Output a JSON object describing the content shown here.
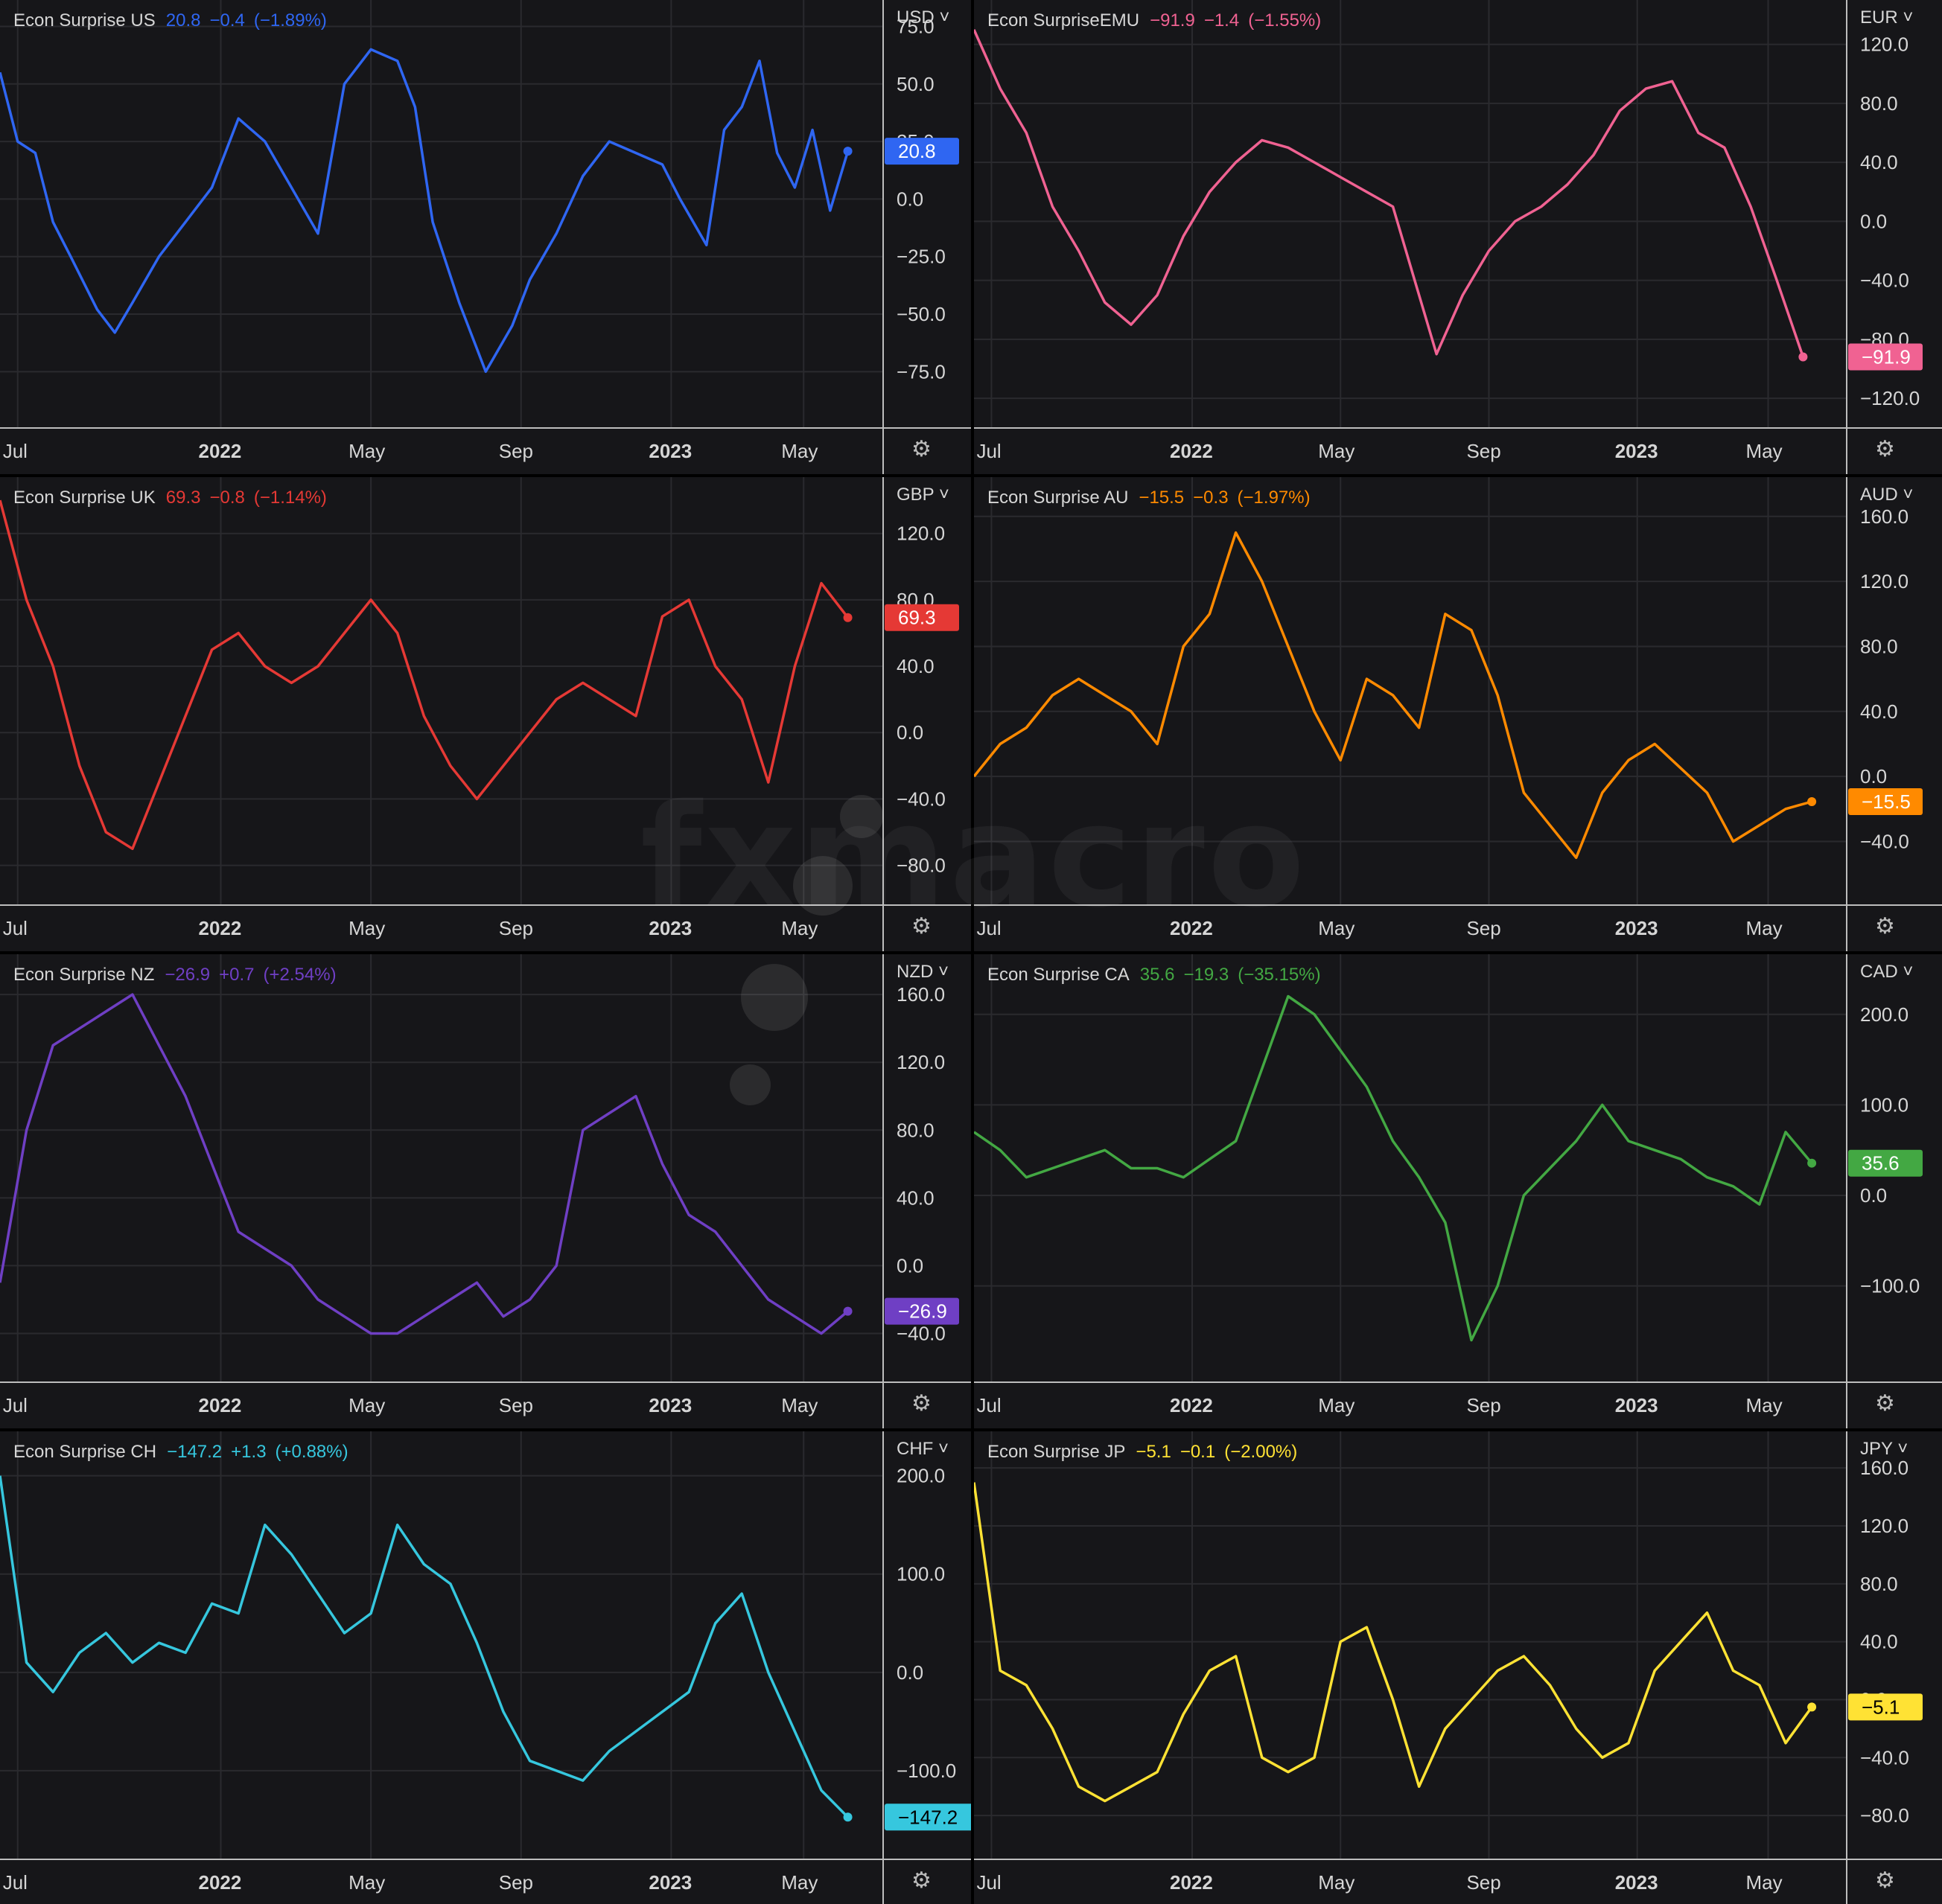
{
  "watermark": "fxmacro",
  "chart_data": [
    {
      "type": "line",
      "series_name": "Econ Surprise US",
      "last": "20.8",
      "change": "−0.4",
      "change_pct": "(−1.89%)",
      "currency": "USD",
      "color": "#2f66f2",
      "y_ticks": [
        75,
        50,
        25,
        0,
        -25,
        -50,
        -75
      ],
      "ylim": [
        -93,
        80
      ],
      "x_ticks": [
        "Jul",
        "2022",
        "May",
        "Sep",
        "2023",
        "May"
      ],
      "x": [
        0,
        0.02,
        0.04,
        0.06,
        0.08,
        0.11,
        0.13,
        0.15,
        0.18,
        0.21,
        0.24,
        0.27,
        0.3,
        0.33,
        0.36,
        0.39,
        0.42,
        0.45,
        0.47,
        0.49,
        0.52,
        0.55,
        0.58,
        0.6,
        0.63,
        0.66,
        0.69,
        0.72,
        0.75,
        0.77,
        0.8,
        0.82,
        0.84,
        0.86,
        0.88,
        0.9,
        0.92,
        0.94,
        0.96
      ],
      "y": [
        55,
        25,
        20,
        -10,
        -25,
        -48,
        -58,
        -45,
        -25,
        -10,
        5,
        35,
        25,
        5,
        -15,
        50,
        65,
        60,
        40,
        -10,
        -45,
        -75,
        -55,
        -35,
        -15,
        10,
        25,
        20,
        15,
        0,
        -20,
        30,
        40,
        60,
        20,
        5,
        30,
        -5,
        20.8
      ]
    },
    {
      "type": "line",
      "series_name": "Econ SurpriseEMU",
      "last": "−91.9",
      "change": "−1.4",
      "change_pct": "(−1.55%)",
      "currency": "EUR",
      "color": "#f06292",
      "y_ticks": [
        120,
        80,
        40,
        0,
        -40,
        -80,
        -120
      ],
      "ylim": [
        -130,
        140
      ],
      "x_ticks": [
        "Jul",
        "2022",
        "May",
        "Sep",
        "2023",
        "May"
      ],
      "x": [
        0,
        0.03,
        0.06,
        0.09,
        0.12,
        0.15,
        0.18,
        0.21,
        0.24,
        0.27,
        0.3,
        0.33,
        0.36,
        0.39,
        0.42,
        0.45,
        0.48,
        0.5,
        0.53,
        0.56,
        0.59,
        0.62,
        0.65,
        0.68,
        0.71,
        0.74,
        0.77,
        0.8,
        0.83,
        0.86,
        0.89,
        0.92,
        0.95
      ],
      "y": [
        130,
        90,
        60,
        10,
        -20,
        -55,
        -70,
        -50,
        -10,
        20,
        40,
        55,
        50,
        40,
        30,
        20,
        10,
        -30,
        -90,
        -50,
        -20,
        0,
        10,
        25,
        45,
        75,
        90,
        95,
        60,
        50,
        10,
        -40,
        -91.9
      ]
    },
    {
      "type": "line",
      "series_name": "Econ Surprise UK",
      "last": "69.3",
      "change": "−0.8",
      "change_pct": "(−1.14%)",
      "currency": "GBP",
      "color": "#e53935",
      "y_ticks": [
        120,
        80,
        40,
        0,
        -40,
        -80
      ],
      "ylim": [
        -95,
        145
      ],
      "x_ticks": [
        "Jul",
        "2022",
        "May",
        "Sep",
        "2023",
        "May"
      ],
      "x": [
        0,
        0.03,
        0.06,
        0.09,
        0.12,
        0.15,
        0.18,
        0.21,
        0.24,
        0.27,
        0.3,
        0.33,
        0.36,
        0.39,
        0.42,
        0.45,
        0.48,
        0.51,
        0.54,
        0.57,
        0.6,
        0.63,
        0.66,
        0.69,
        0.72,
        0.75,
        0.78,
        0.81,
        0.84,
        0.87,
        0.9,
        0.93,
        0.96
      ],
      "y": [
        140,
        80,
        40,
        -20,
        -60,
        -70,
        -30,
        10,
        50,
        60,
        40,
        30,
        40,
        60,
        80,
        60,
        10,
        -20,
        -40,
        -20,
        0,
        20,
        30,
        20,
        10,
        70,
        80,
        40,
        20,
        -30,
        40,
        90,
        69.3
      ]
    },
    {
      "type": "line",
      "series_name": "Econ Surprise AU",
      "last": "−15.5",
      "change": "−0.3",
      "change_pct": "(−1.97%)",
      "currency": "AUD",
      "color": "#ff8a00",
      "y_ticks": [
        160,
        120,
        80,
        40,
        0,
        -40
      ],
      "ylim": [
        -70,
        175
      ],
      "x_ticks": [
        "Jul",
        "2022",
        "May",
        "Sep",
        "2023",
        "May"
      ],
      "x": [
        0,
        0.03,
        0.06,
        0.09,
        0.12,
        0.15,
        0.18,
        0.21,
        0.24,
        0.27,
        0.3,
        0.33,
        0.36,
        0.39,
        0.42,
        0.45,
        0.48,
        0.51,
        0.54,
        0.57,
        0.6,
        0.63,
        0.66,
        0.69,
        0.72,
        0.75,
        0.78,
        0.81,
        0.84,
        0.87,
        0.9,
        0.93,
        0.96
      ],
      "y": [
        0,
        20,
        30,
        50,
        60,
        50,
        40,
        20,
        80,
        100,
        150,
        120,
        80,
        40,
        10,
        60,
        50,
        30,
        100,
        90,
        50,
        -10,
        -30,
        -50,
        -10,
        10,
        20,
        5,
        -10,
        -40,
        -30,
        -20,
        -15.5
      ]
    },
    {
      "type": "line",
      "series_name": "Econ Surprise NZ",
      "last": "−26.9",
      "change": "+0.7",
      "change_pct": "(+2.54%)",
      "currency": "NZD",
      "color": "#6f3fc4",
      "y_ticks": [
        160,
        120,
        80,
        40,
        0,
        -40
      ],
      "ylim": [
        -60,
        175
      ],
      "x_ticks": [
        "Jul",
        "2022",
        "May",
        "Sep",
        "2023",
        "May"
      ],
      "x": [
        0,
        0.03,
        0.06,
        0.09,
        0.12,
        0.15,
        0.18,
        0.21,
        0.24,
        0.27,
        0.3,
        0.33,
        0.36,
        0.39,
        0.42,
        0.45,
        0.48,
        0.51,
        0.54,
        0.57,
        0.6,
        0.63,
        0.66,
        0.69,
        0.72,
        0.75,
        0.78,
        0.81,
        0.84,
        0.87,
        0.9,
        0.93,
        0.96
      ],
      "y": [
        -10,
        80,
        130,
        140,
        150,
        160,
        130,
        100,
        60,
        20,
        10,
        0,
        -20,
        -30,
        -40,
        -40,
        -30,
        -20,
        -10,
        -30,
        -20,
        0,
        80,
        90,
        100,
        60,
        30,
        20,
        0,
        -20,
        -30,
        -40,
        -26.9
      ]
    },
    {
      "type": "line",
      "series_name": "Econ Surprise CA",
      "last": "35.6",
      "change": "−19.3",
      "change_pct": "(−35.15%)",
      "currency": "CAD",
      "color": "#43a843",
      "y_ticks": [
        200,
        100,
        0,
        -100
      ],
      "ylim": [
        -190,
        250
      ],
      "x_ticks": [
        "Jul",
        "2022",
        "May",
        "Sep",
        "2023",
        "May"
      ],
      "x": [
        0,
        0.03,
        0.06,
        0.09,
        0.12,
        0.15,
        0.18,
        0.21,
        0.24,
        0.27,
        0.3,
        0.33,
        0.36,
        0.39,
        0.42,
        0.45,
        0.48,
        0.51,
        0.54,
        0.57,
        0.6,
        0.63,
        0.66,
        0.69,
        0.72,
        0.75,
        0.78,
        0.81,
        0.84,
        0.87,
        0.9,
        0.93,
        0.96
      ],
      "y": [
        70,
        50,
        20,
        30,
        40,
        50,
        30,
        30,
        20,
        40,
        60,
        140,
        220,
        200,
        160,
        120,
        60,
        20,
        -30,
        -160,
        -100,
        0,
        30,
        60,
        100,
        60,
        50,
        40,
        20,
        10,
        -10,
        70,
        35.6
      ]
    },
    {
      "type": "line",
      "series_name": "Econ Surprise CH",
      "last": "−147.2",
      "change": "+1.3",
      "change_pct": "(+0.88%)",
      "currency": "CHF",
      "color": "#36c7de",
      "y_ticks": [
        200,
        100,
        0,
        -100
      ],
      "ylim": [
        -175,
        230
      ],
      "x_ticks": [
        "Jul",
        "2022",
        "May",
        "Sep",
        "2023",
        "May"
      ],
      "x": [
        0,
        0.03,
        0.06,
        0.09,
        0.12,
        0.15,
        0.18,
        0.21,
        0.24,
        0.27,
        0.3,
        0.33,
        0.36,
        0.39,
        0.42,
        0.45,
        0.48,
        0.51,
        0.54,
        0.57,
        0.6,
        0.63,
        0.66,
        0.69,
        0.72,
        0.75,
        0.78,
        0.81,
        0.84,
        0.87,
        0.9,
        0.93,
        0.96
      ],
      "y": [
        200,
        10,
        -20,
        20,
        40,
        10,
        30,
        20,
        70,
        60,
        150,
        120,
        80,
        40,
        60,
        150,
        110,
        90,
        30,
        -40,
        -90,
        -100,
        -110,
        -80,
        -60,
        -40,
        -20,
        50,
        80,
        0,
        -60,
        -120,
        -147.2
      ]
    },
    {
      "type": "line",
      "series_name": "Econ Surprise JP",
      "last": "−5.1",
      "change": "−0.1",
      "change_pct": "(−2.00%)",
      "currency": "JPY",
      "color": "#ffe234",
      "y_ticks": [
        160,
        120,
        80,
        40,
        0,
        -40,
        -80
      ],
      "ylim": [
        -100,
        175
      ],
      "x_ticks": [
        "Jul",
        "2022",
        "May",
        "Sep",
        "2023",
        "May"
      ],
      "x": [
        0,
        0.03,
        0.06,
        0.09,
        0.12,
        0.15,
        0.18,
        0.21,
        0.24,
        0.27,
        0.3,
        0.33,
        0.36,
        0.39,
        0.42,
        0.45,
        0.48,
        0.51,
        0.54,
        0.57,
        0.6,
        0.63,
        0.66,
        0.69,
        0.72,
        0.75,
        0.78,
        0.81,
        0.84,
        0.87,
        0.9,
        0.93,
        0.96
      ],
      "y": [
        150,
        20,
        10,
        -20,
        -60,
        -70,
        -60,
        -50,
        -10,
        20,
        30,
        -40,
        -50,
        -40,
        40,
        50,
        0,
        -60,
        -20,
        0,
        20,
        30,
        10,
        -20,
        -40,
        -30,
        20,
        40,
        60,
        20,
        10,
        -30,
        -5.1
      ]
    }
  ]
}
